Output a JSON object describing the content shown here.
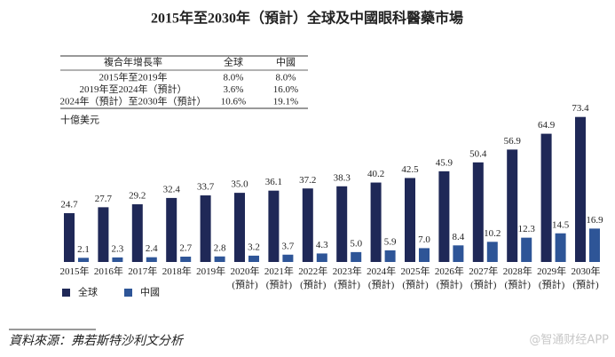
{
  "chart_data": {
    "type": "bar",
    "title": "2015年至2030年（預計）全球及中國眼科醫藥市場",
    "table": {
      "header": [
        "複合年增長率",
        "全球",
        "中國"
      ],
      "rows": [
        [
          "2015年至2019年",
          "8.0%",
          "8.0%"
        ],
        [
          "2019年至2024年（預計）",
          "3.6%",
          "16.0%"
        ],
        [
          "2024年（預計）至2030年（預計）",
          "10.6%",
          "19.1%"
        ]
      ]
    },
    "y_label": "十億美元",
    "categories": [
      "2015年",
      "2016年",
      "2017年",
      "2018年",
      "2019年",
      "2020年\n(預計)",
      "2021年\n(預計)",
      "2022年\n(預計)",
      "2023年\n(預計)",
      "2024年\n(預計)",
      "2025年\n(預計)",
      "2026年\n(預計)",
      "2027年\n(預計)",
      "2028年\n(預計)",
      "2029年\n(預計)",
      "2030年\n(預計)"
    ],
    "series": [
      {
        "name": "全球",
        "color": "#1f2857",
        "values": [
          24.7,
          27.7,
          29.2,
          32.4,
          33.7,
          35.0,
          36.1,
          37.2,
          38.3,
          40.2,
          42.5,
          45.9,
          50.4,
          56.9,
          64.9,
          73.4
        ],
        "value_labels": [
          "24.7",
          "27.7",
          "29.2",
          "32.4",
          "33.7",
          "35.0",
          "36.1",
          "37.2",
          "38.3",
          "40.2",
          "42.5",
          "45.9",
          "50.4",
          "56.9",
          "64.9",
          "73.4"
        ]
      },
      {
        "name": "中國",
        "color": "#2e5597",
        "values": [
          2.1,
          2.3,
          2.4,
          2.7,
          2.8,
          3.2,
          3.7,
          4.3,
          5.0,
          5.9,
          7.0,
          8.4,
          10.2,
          12.3,
          14.5,
          16.9
        ],
        "value_labels": [
          "2.1",
          "2.3",
          "2.4",
          "2.7",
          "2.8",
          "3.2",
          "3.7",
          "4.3",
          "5.0",
          "5.9",
          "7.0",
          "8.4",
          "10.2",
          "12.3",
          "14.5",
          "16.9"
        ]
      }
    ],
    "ylim": [
      0,
      80
    ],
    "source": "資料來源：弗若斯特沙利文分析",
    "watermark": "@智通财经APP"
  }
}
